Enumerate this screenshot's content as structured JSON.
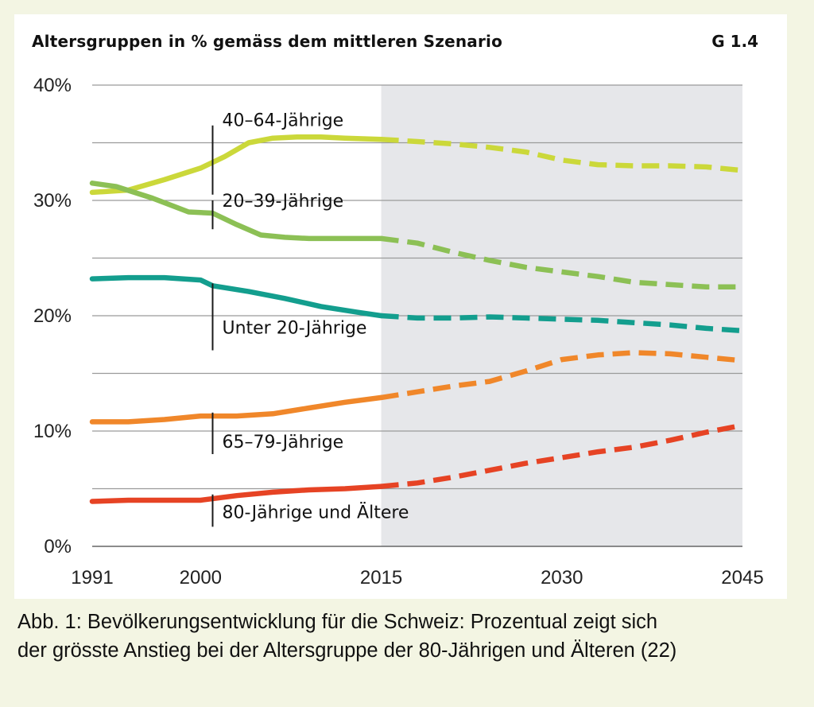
{
  "chart_data": {
    "type": "line",
    "title": "Altersgruppen in % gemäss dem mittleren Szenario",
    "figure_id": "G 1.4",
    "x_ticks": [
      "1991",
      "2000",
      "2015",
      "2030",
      "2045"
    ],
    "y_ticks": [
      "0%",
      "10%",
      "20%",
      "30%",
      "40%"
    ],
    "xlim": [
      1991,
      2045
    ],
    "ylim": [
      0,
      40
    ],
    "y_unit": "%",
    "grid": "horizontal",
    "projection_shaded_from": 2015,
    "solid_until": 2015,
    "series": [
      {
        "name": "40–64-Jährige",
        "color": "#cbd83a",
        "x": [
          1991,
          1994,
          1997,
          2000,
          2002,
          2004,
          2006,
          2008,
          2010,
          2012,
          2015,
          2018,
          2021,
          2024,
          2027,
          2030,
          2033,
          2036,
          2039,
          2042,
          2045
        ],
        "y": [
          30.7,
          30.9,
          31.8,
          32.8,
          33.8,
          35.0,
          35.4,
          35.5,
          35.5,
          35.4,
          35.3,
          35.1,
          34.9,
          34.6,
          34.2,
          33.5,
          33.1,
          33.0,
          33.0,
          32.9,
          32.6
        ]
      },
      {
        "name": "20–39-Jährige",
        "color": "#8cc055",
        "x": [
          1991,
          1993,
          1996,
          1999,
          2001,
          2003,
          2005,
          2007,
          2009,
          2012,
          2015,
          2018,
          2021,
          2024,
          2027,
          2030,
          2033,
          2036,
          2039,
          2042,
          2045
        ],
        "y": [
          31.5,
          31.2,
          30.2,
          29.0,
          28.9,
          27.9,
          27.0,
          26.8,
          26.7,
          26.7,
          26.7,
          26.3,
          25.5,
          24.8,
          24.2,
          23.8,
          23.4,
          22.9,
          22.7,
          22.5,
          22.5
        ]
      },
      {
        "name": "Unter 20-Jährige",
        "color": "#139e8e",
        "x": [
          1991,
          1994,
          1997,
          2000,
          2001,
          2004,
          2007,
          2010,
          2013,
          2015,
          2018,
          2021,
          2024,
          2027,
          2030,
          2033,
          2036,
          2039,
          2042,
          2045
        ],
        "y": [
          23.2,
          23.3,
          23.3,
          23.1,
          22.6,
          22.1,
          21.5,
          20.8,
          20.3,
          20.0,
          19.8,
          19.8,
          19.9,
          19.8,
          19.7,
          19.6,
          19.4,
          19.2,
          18.9,
          18.7
        ]
      },
      {
        "name": "65–79-Jährige",
        "color": "#f0872a",
        "x": [
          1991,
          1994,
          1997,
          2000,
          2003,
          2006,
          2009,
          2012,
          2015,
          2018,
          2021,
          2024,
          2027,
          2030,
          2033,
          2036,
          2039,
          2042,
          2045
        ],
        "y": [
          10.8,
          10.8,
          11.0,
          11.3,
          11.3,
          11.5,
          12.0,
          12.5,
          12.9,
          13.4,
          13.9,
          14.3,
          15.2,
          16.2,
          16.6,
          16.8,
          16.7,
          16.4,
          16.1
        ]
      },
      {
        "name": "80-Jährige und Ältere",
        "color": "#e64324",
        "x": [
          1991,
          1994,
          1997,
          2000,
          2003,
          2006,
          2009,
          2012,
          2015,
          2018,
          2021,
          2024,
          2027,
          2030,
          2033,
          2036,
          2039,
          2042,
          2045
        ],
        "y": [
          3.9,
          4.0,
          4.0,
          4.0,
          4.4,
          4.7,
          4.9,
          5.0,
          5.2,
          5.5,
          6.0,
          6.6,
          7.2,
          7.7,
          8.2,
          8.6,
          9.2,
          9.9,
          10.5
        ]
      }
    ],
    "annotations": [
      {
        "text": "40–64-Jährige",
        "x": 2001,
        "y_top": 36.5,
        "y_bottom": 30.5,
        "label_y": 37.0
      },
      {
        "text": "20–39-Jährige",
        "x": 2001,
        "y_top": 30.0,
        "y_bottom": 27.5,
        "label_y": 30.0
      },
      {
        "text": "Unter 20-Jährige",
        "x": 2001,
        "y_top": 22.8,
        "y_bottom": 17.0,
        "label_y": 19.0
      },
      {
        "text": "65–79-Jährige",
        "x": 2001,
        "y_top": 11.6,
        "y_bottom": 8.0,
        "label_y": 9.1
      },
      {
        "text": "80-Jährige und Ältere",
        "x": 2001,
        "y_top": 4.5,
        "y_bottom": 1.7,
        "label_y": 3.0
      }
    ]
  },
  "caption": {
    "line1": "Abb. 1: Bevölkerungsentwicklung für die Schweiz: Prozentual zeigt sich",
    "line2": "der grösste Anstieg bei der Altersgruppe der 80-Jährigen und Älteren (22)"
  }
}
